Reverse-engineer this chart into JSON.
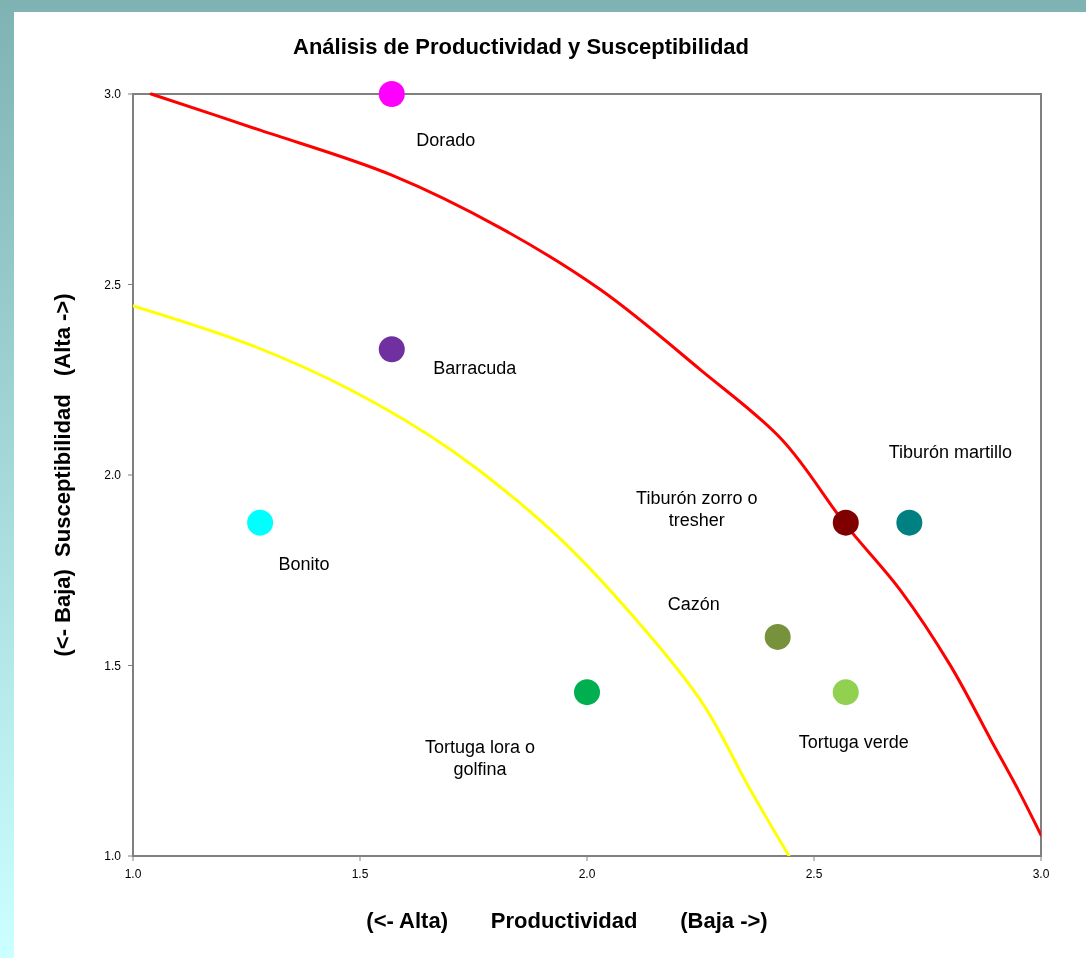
{
  "chart_data": {
    "type": "scatter",
    "title": "Análisis de Productividad y Susceptibilidad",
    "xlabel": "(<- Alta)       Productividad       (Baja ->)",
    "ylabel": "(<- Baja)  Susceptibilidad   (Alta ->)",
    "xlim": [
      1.0,
      3.0
    ],
    "ylim": [
      1.0,
      3.0
    ],
    "xticks": [
      {
        "value": 1,
        "label": "1.0"
      },
      {
        "value": 1.5,
        "label": "1.5"
      },
      {
        "value": 2,
        "label": "2.0"
      },
      {
        "value": 2.5,
        "label": "2.5"
      },
      {
        "value": 3,
        "label": "3.0"
      }
    ],
    "yticks": [
      {
        "value": 1,
        "label": "1.0"
      },
      {
        "value": 1.5,
        "label": "1.5"
      },
      {
        "value": 2,
        "label": "2.0"
      },
      {
        "value": 2.5,
        "label": "2.5"
      },
      {
        "value": 3,
        "label": "3.0"
      }
    ],
    "grid": false,
    "marker": "circle",
    "series": [
      {
        "x": [
          1.57,
          1.57,
          1.28,
          2.0,
          2.42,
          2.57,
          2.57,
          2.71
        ],
        "values": [
          3.0,
          2.33,
          1.875,
          1.43,
          1.575,
          1.43,
          1.875,
          1.875
        ],
        "colors": [
          "#ff00ff",
          "#7030a0",
          "#00ffff",
          "#00b050",
          "#76923c",
          "#92d050",
          "#800000",
          "#008080"
        ]
      },
      {
        "type": "line",
        "marker": "none",
        "color": "#ff0000",
        "x": [
          1.04,
          1.28,
          1.57,
          1.81,
          2.03,
          2.25,
          2.43,
          2.57,
          2.69,
          2.8,
          2.89,
          2.95,
          3.0
        ],
        "values": [
          3.0,
          2.905,
          2.787,
          2.648,
          2.486,
          2.276,
          2.092,
          1.869,
          1.698,
          1.501,
          1.304,
          1.173,
          1.055
        ]
      },
      {
        "type": "line",
        "marker": "none",
        "color": "#ffff00",
        "x": [
          1.0,
          1.26,
          1.48,
          1.7,
          1.92,
          2.07,
          2.25,
          2.36,
          2.445
        ],
        "values": [
          2.444,
          2.341,
          2.223,
          2.066,
          1.856,
          1.672,
          1.409,
          1.173,
          1.0
        ]
      }
    ],
    "annotations": [
      "Dorado",
      "Barracuda",
      "Bonito",
      "Tortuga lora o golfina",
      "Cazón",
      "Tortuga verde",
      "Tiburón zorro o tresher",
      "Tiburón martillo"
    ]
  }
}
